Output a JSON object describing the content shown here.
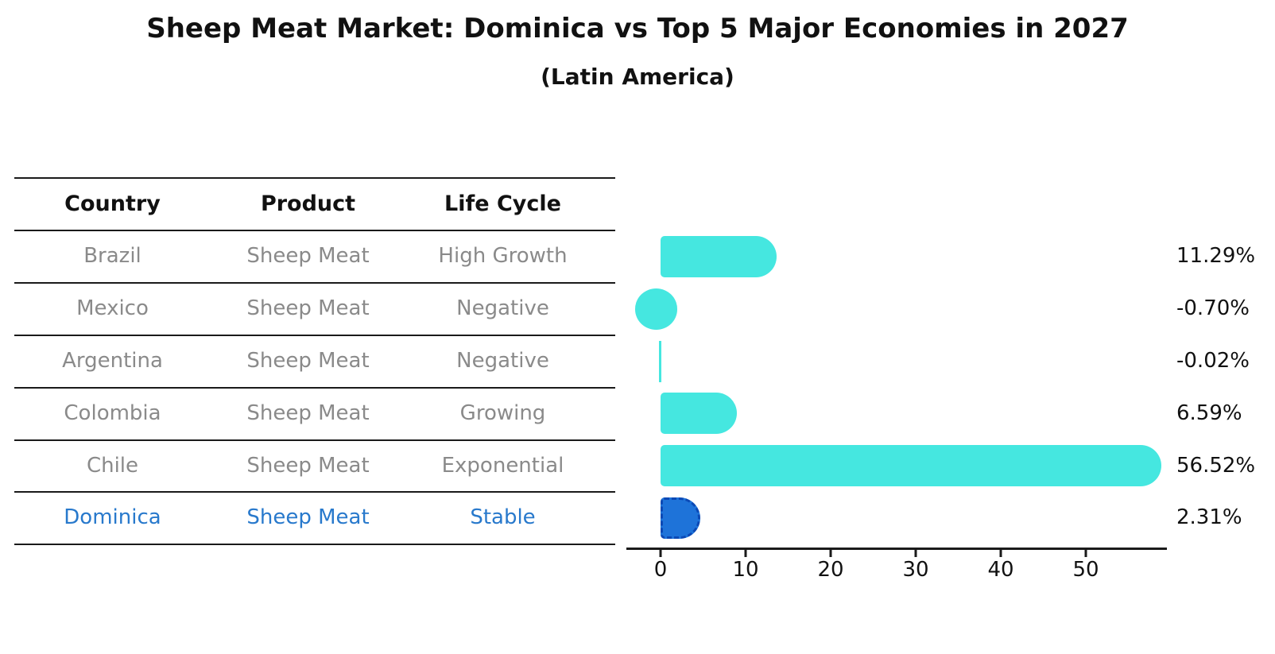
{
  "header": {
    "title": "Sheep Meat Market: Dominica vs Top 5 Major Economies in 2027",
    "subtitle": "(Latin America)"
  },
  "table": {
    "columns": [
      "Country",
      "Product",
      "Life Cycle"
    ],
    "rows": [
      {
        "country": "Brazil",
        "product": "Sheep Meat",
        "life_cycle": "High Growth"
      },
      {
        "country": "Mexico",
        "product": "Sheep Meat",
        "life_cycle": "Negative"
      },
      {
        "country": "Argentina",
        "product": "Sheep Meat",
        "life_cycle": "Negative"
      },
      {
        "country": "Colombia",
        "product": "Sheep Meat",
        "life_cycle": "Growing"
      },
      {
        "country": "Chile",
        "product": "Sheep Meat",
        "life_cycle": "Exponential"
      },
      {
        "country": "Dominica",
        "product": "Sheep Meat",
        "life_cycle": "Stable"
      }
    ],
    "highlight_country": "Dominica"
  },
  "chart_data": {
    "type": "bar",
    "orientation": "horizontal",
    "categories": [
      "Brazil",
      "Mexico",
      "Argentina",
      "Colombia",
      "Chile",
      "Dominica"
    ],
    "values": [
      11.29,
      -0.7,
      -0.02,
      6.59,
      56.52,
      2.31
    ],
    "value_labels": [
      "11.29%",
      "-0.70%",
      "-0.02%",
      "6.59%",
      "56.52%",
      "2.31%"
    ],
    "x_ticks": [
      0,
      10,
      20,
      30,
      40,
      50
    ],
    "x_tick_labels": [
      "0",
      "10",
      "20",
      "30",
      "40",
      "50"
    ],
    "xlim": [
      -4,
      59.5
    ],
    "grid": false,
    "legend": false,
    "highlight_category": "Dominica",
    "colors": {
      "bar": "#45e7e0",
      "highlight_bar": "#1e73d9",
      "highlight_border": "#0b49b5",
      "axis": "#1a1a1a",
      "table_text": "#8a8a8a",
      "highlight_text": "#2879cc"
    }
  }
}
